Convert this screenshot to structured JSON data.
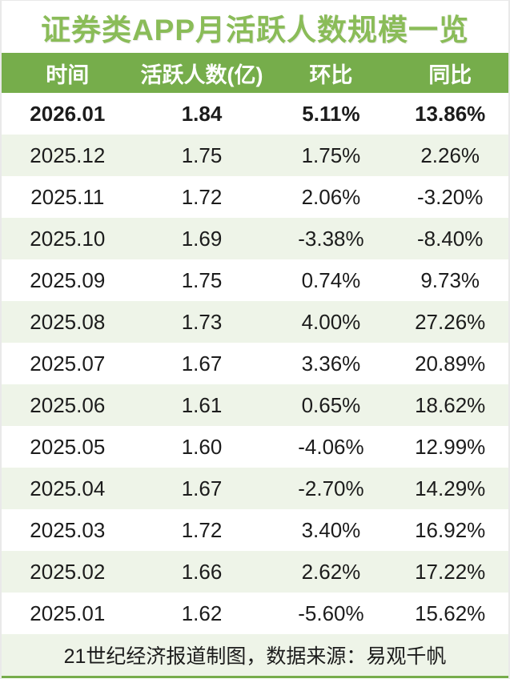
{
  "title": "证券类APP月活跃人数规模一览",
  "footer": "21世纪经济报道制图，数据来源：易观千帆",
  "colors": {
    "accent_green": "#76ad4b",
    "title_green": "#8abc58",
    "alt_row_green": "#eef4e8",
    "header_text": "#ffffff",
    "body_text": "#1c1c1c"
  },
  "table": {
    "columns": [
      "时间",
      "活跃人数(亿)",
      "环比",
      "同比"
    ],
    "rows": [
      {
        "time": "2026.01",
        "active_users": "1.84",
        "mom": "5.11%",
        "yoy": "13.86%",
        "bold": true
      },
      {
        "time": "2025.12",
        "active_users": "1.75",
        "mom": "1.75%",
        "yoy": "2.26%",
        "bold": false
      },
      {
        "time": "2025.11",
        "active_users": "1.72",
        "mom": "2.06%",
        "yoy": "-3.20%",
        "bold": false
      },
      {
        "time": "2025.10",
        "active_users": "1.69",
        "mom": "-3.38%",
        "yoy": "-8.40%",
        "bold": false
      },
      {
        "time": "2025.09",
        "active_users": "1.75",
        "mom": "0.74%",
        "yoy": "9.73%",
        "bold": false
      },
      {
        "time": "2025.08",
        "active_users": "1.73",
        "mom": "4.00%",
        "yoy": "27.26%",
        "bold": false
      },
      {
        "time": "2025.07",
        "active_users": "1.67",
        "mom": "3.36%",
        "yoy": "20.89%",
        "bold": false
      },
      {
        "time": "2025.06",
        "active_users": "1.61",
        "mom": "0.65%",
        "yoy": "18.62%",
        "bold": false
      },
      {
        "time": "2025.05",
        "active_users": "1.60",
        "mom": "-4.06%",
        "yoy": "12.99%",
        "bold": false
      },
      {
        "time": "2025.04",
        "active_users": "1.67",
        "mom": "-2.70%",
        "yoy": "14.29%",
        "bold": false
      },
      {
        "time": "2025.03",
        "active_users": "1.72",
        "mom": "3.40%",
        "yoy": "16.92%",
        "bold": false
      },
      {
        "time": "2025.02",
        "active_users": "1.66",
        "mom": "2.62%",
        "yoy": "17.22%",
        "bold": false
      },
      {
        "time": "2025.01",
        "active_users": "1.62",
        "mom": "-5.60%",
        "yoy": "15.62%",
        "bold": false
      }
    ]
  },
  "chart_data": {
    "type": "table",
    "title": "证券类APP月活跃人数规模一览",
    "columns": [
      "时间",
      "活跃人数(亿)",
      "环比",
      "同比"
    ],
    "rows": [
      [
        "2026.01",
        "1.84",
        "5.11%",
        "13.86%"
      ],
      [
        "2025.12",
        "1.75",
        "1.75%",
        "2.26%"
      ],
      [
        "2025.11",
        "1.72",
        "2.06%",
        "-3.20%"
      ],
      [
        "2025.10",
        "1.69",
        "-3.38%",
        "-8.40%"
      ],
      [
        "2025.09",
        "1.75",
        "0.74%",
        "9.73%"
      ],
      [
        "2025.08",
        "1.73",
        "4.00%",
        "27.26%"
      ],
      [
        "2025.07",
        "1.67",
        "3.36%",
        "20.89%"
      ],
      [
        "2025.06",
        "1.61",
        "0.65%",
        "18.62%"
      ],
      [
        "2025.05",
        "1.60",
        "-4.06%",
        "12.99%"
      ],
      [
        "2025.04",
        "1.67",
        "-2.70%",
        "14.29%"
      ],
      [
        "2025.03",
        "1.72",
        "3.40%",
        "16.92%"
      ],
      [
        "2025.02",
        "1.66",
        "2.62%",
        "17.22%"
      ],
      [
        "2025.01",
        "1.62",
        "-5.60%",
        "15.62%"
      ]
    ],
    "series": [
      {
        "name": "活跃人数(亿)",
        "values": [
          1.84,
          1.75,
          1.72,
          1.69,
          1.75,
          1.73,
          1.67,
          1.61,
          1.6,
          1.67,
          1.72,
          1.66,
          1.62
        ]
      },
      {
        "name": "环比%",
        "values": [
          5.11,
          1.75,
          2.06,
          -3.38,
          0.74,
          4.0,
          3.36,
          0.65,
          -4.06,
          -2.7,
          3.4,
          2.62,
          -5.6
        ]
      },
      {
        "name": "同比%",
        "values": [
          13.86,
          2.26,
          -3.2,
          -8.4,
          9.73,
          27.26,
          20.89,
          18.62,
          12.99,
          14.29,
          16.92,
          17.22,
          15.62
        ]
      }
    ],
    "x": [
      "2026.01",
      "2025.12",
      "2025.11",
      "2025.10",
      "2025.09",
      "2025.08",
      "2025.07",
      "2025.06",
      "2025.05",
      "2025.04",
      "2025.03",
      "2025.02",
      "2025.01"
    ],
    "source_note": "21世纪经济报道制图，数据来源：易观千帆"
  }
}
